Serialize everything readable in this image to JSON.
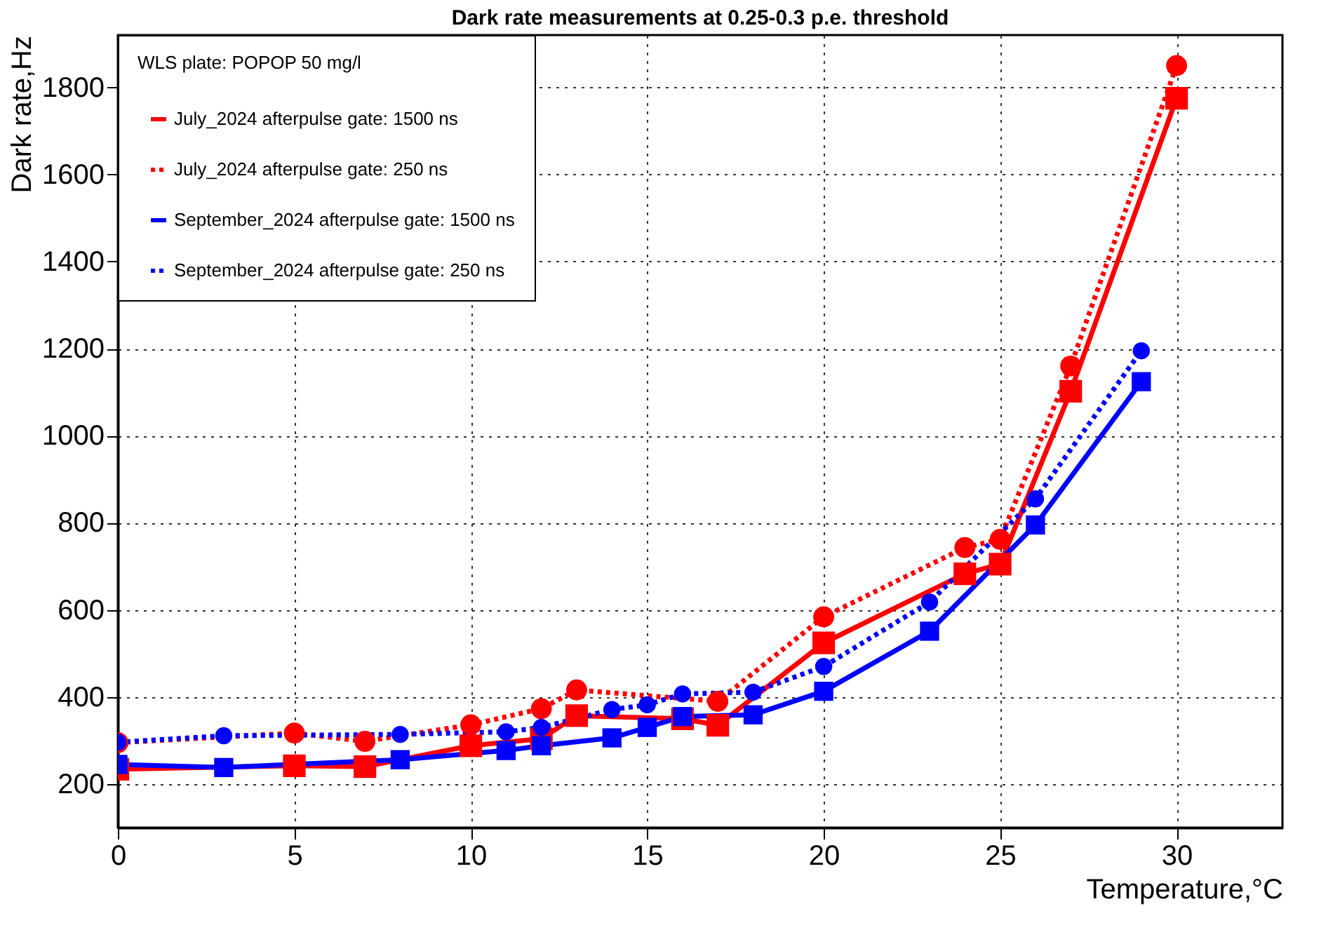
{
  "chart_data": {
    "type": "line",
    "title": "Dark rate measurements at 0.25-0.3 p.e. threshold",
    "xlabel": "Temperature,°C",
    "ylabel": "Dark rate,Hz",
    "legend_title": "WLS plate: POPOP 50 mg/l",
    "xlim": [
      0,
      33
    ],
    "xticks": [
      0,
      5,
      10,
      15,
      20,
      25,
      30
    ],
    "ylim": [
      100,
      1920
    ],
    "yticks": [
      200,
      400,
      600,
      800,
      1000,
      1200,
      1400,
      1600,
      1800
    ],
    "grid": true,
    "legend": "top left",
    "series": [
      {
        "name": "July_2024 afterpulse gate: 1500 ns",
        "color": "#ff0000",
        "marker": "square",
        "line_style": "solid",
        "x": [
          0,
          5,
          7,
          10,
          12,
          13,
          16,
          17,
          20,
          24,
          25,
          27,
          30
        ],
        "values": [
          234,
          242,
          240,
          288,
          304,
          357,
          350,
          335,
          524,
          683,
          705,
          1102,
          1775
        ]
      },
      {
        "name": "July_2024 afterpulse gate: 250 ns",
        "color": "#ff0000",
        "marker": "circle",
        "line_style": "dotted",
        "x": [
          0,
          5,
          7,
          10,
          12,
          13,
          17,
          20,
          24,
          25,
          27,
          30
        ],
        "values": [
          295,
          317,
          298,
          336,
          373,
          416,
          390,
          584,
          743,
          762,
          1160,
          1850
        ]
      },
      {
        "name": "September_2024 afterpulse gate: 1500 ns",
        "color": "#0000ff",
        "marker": "square",
        "line_style": "solid",
        "x": [
          0,
          3,
          8,
          11,
          12,
          14,
          15,
          16,
          18,
          20,
          23,
          26,
          29
        ],
        "values": [
          245,
          238,
          256,
          277,
          288,
          306,
          330,
          355,
          359,
          413,
          551,
          795,
          1124
        ]
      },
      {
        "name": "September_2024 afterpulse gate: 250 ns",
        "color": "#0000ff",
        "marker": "circle",
        "line_style": "dotted",
        "x": [
          0,
          3,
          8,
          11,
          12,
          14,
          15,
          16,
          18,
          20,
          23,
          26,
          29
        ],
        "values": [
          296,
          311,
          314,
          320,
          330,
          371,
          382,
          407,
          411,
          470,
          618,
          855,
          1195
        ]
      }
    ]
  }
}
